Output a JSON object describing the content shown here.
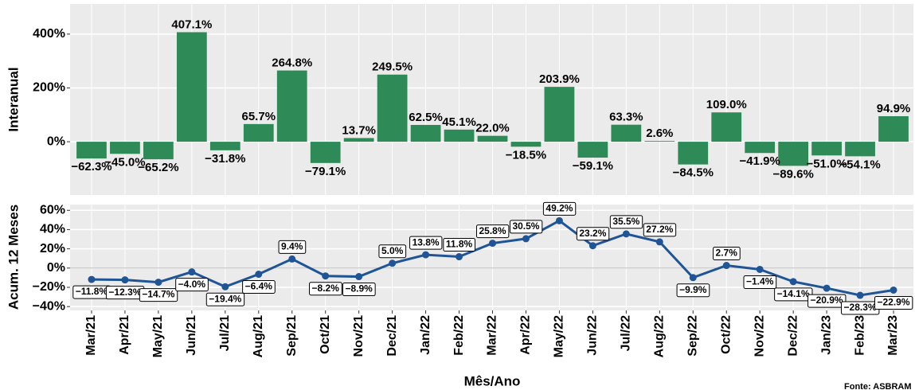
{
  "chart_data": [
    {
      "type": "bar",
      "y_label": "Interanual",
      "categories": [
        "Mar/21",
        "Apr/21",
        "May/21",
        "Jun/21",
        "Jul/21",
        "Aug/21",
        "Sep/21",
        "Oct/21",
        "Nov/21",
        "Dec/21",
        "Jan/22",
        "Feb/22",
        "Mar/22",
        "Apr/22",
        "May/22",
        "Jun/22",
        "Jul/22",
        "Aug/22",
        "Sep/22",
        "Oct/22",
        "Nov/22",
        "Dec/22",
        "Jan/23",
        "Feb/23",
        "Mar/23"
      ],
      "values": [
        -62.3,
        -45.0,
        -65.2,
        407.1,
        -31.8,
        65.7,
        264.8,
        -79.1,
        13.7,
        249.5,
        62.5,
        45.1,
        22.0,
        -18.5,
        203.9,
        -59.1,
        63.3,
        2.6,
        -84.5,
        109.0,
        -41.9,
        -89.6,
        -51.0,
        -54.1,
        94.9
      ],
      "value_labels": [
        "−62.3%",
        "−45.0%",
        "−65.2%",
        "407.1%",
        "−31.8%",
        "65.7%",
        "264.8%",
        "−79.1%",
        "13.7%",
        "249.5%",
        "62.5%",
        "45.1%",
        "22.0%",
        "−18.5%",
        "203.9%",
        "−59.1%",
        "63.3%",
        "2.6%",
        "−84.5%",
        "109.0%",
        "−41.9%",
        "−89.6%",
        "−51.0%",
        "−54.1%",
        "94.9%"
      ],
      "color": "#2e8b57",
      "ylim": [
        -198,
        512
      ],
      "yticks": [
        {
          "value": 0,
          "label": "0%"
        },
        {
          "value": 200,
          "label": "200%"
        },
        {
          "value": 400,
          "label": "400%"
        }
      ],
      "grid": true
    },
    {
      "type": "line",
      "y_label": "Acum. 12 Meses",
      "x_label": "Mês/Ano",
      "categories": [
        "Mar/21",
        "Apr/21",
        "May/21",
        "Jun/21",
        "Jul/21",
        "Aug/21",
        "Sep/21",
        "Oct/21",
        "Nov/21",
        "Dec/21",
        "Jan/22",
        "Feb/22",
        "Mar/22",
        "Apr/22",
        "May/22",
        "Jun/22",
        "Jul/22",
        "Aug/22",
        "Sep/22",
        "Oct/22",
        "Nov/22",
        "Dec/22",
        "Jan/23",
        "Feb/23",
        "Mar/23"
      ],
      "values": [
        -11.8,
        -12.3,
        -14.7,
        -4.0,
        -19.4,
        -6.4,
        9.4,
        -8.2,
        -8.9,
        5.0,
        13.8,
        11.8,
        25.8,
        30.5,
        49.2,
        23.2,
        35.5,
        27.2,
        -9.9,
        2.7,
        -1.4,
        -14.1,
        -20.9,
        -28.3,
        -22.9
      ],
      "value_labels": [
        "−11.8%",
        "−12.3%",
        "−14.7%",
        "−4.0%",
        "−19.4%",
        "−6.4%",
        "9.4%",
        "−8.2%",
        "−8.9%",
        "5.0%",
        "13.8%",
        "11.8%",
        "25.8%",
        "30.5%",
        "49.2%",
        "23.2%",
        "35.5%",
        "27.2%",
        "−9.9%",
        "2.7%",
        "−1.4%",
        "−14.1%",
        "−20.9%",
        "−28.3%",
        "−22.9%"
      ],
      "color": "#1f5596",
      "ylim": [
        -44,
        66
      ],
      "yticks": [
        {
          "value": -40,
          "label": "−40%"
        },
        {
          "value": -20,
          "label": "−20%"
        },
        {
          "value": 0,
          "label": "0%"
        },
        {
          "value": 20,
          "label": "20%"
        },
        {
          "value": 40,
          "label": "40%"
        },
        {
          "value": 60,
          "label": "60%"
        }
      ],
      "grid": true,
      "source": "Fonte: ASBRAM"
    }
  ]
}
